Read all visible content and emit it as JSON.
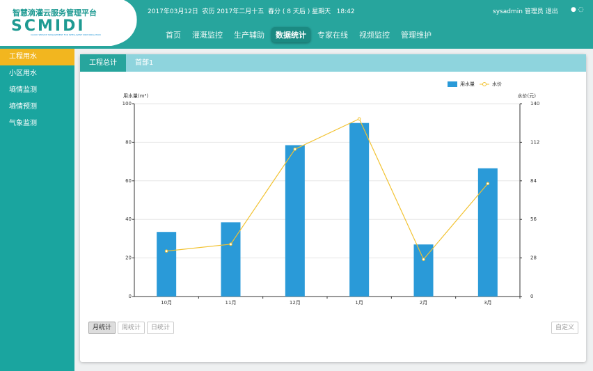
{
  "header": {
    "logo_title": "智慧滴灌云服务管理平台",
    "logo_text": "SCMIDI",
    "logo_subtitle": "CLOUD SERVICE MANAGEMENT FOR INTELLIGENT DRIP IRRIGATION",
    "datetime": "2017年03月12日  农历 2017年二月十五  春分 ( 8 天后 ) 星期天   18:42",
    "user": "sysadmin 管理员",
    "logout": "退出"
  },
  "nav": [
    {
      "label": "首页",
      "active": false
    },
    {
      "label": "灌溉监控",
      "active": false
    },
    {
      "label": "生产辅助",
      "active": false
    },
    {
      "label": "数据统计",
      "active": true
    },
    {
      "label": "专家在线",
      "active": false
    },
    {
      "label": "视频监控",
      "active": false
    },
    {
      "label": "管理维护",
      "active": false
    }
  ],
  "sidebar": [
    {
      "label": "工程用水",
      "active": true
    },
    {
      "label": "小区用水",
      "active": false
    },
    {
      "label": "墒情监测",
      "active": false
    },
    {
      "label": "墒情预测",
      "active": false
    },
    {
      "label": "气象监测",
      "active": false
    }
  ],
  "tabs": [
    {
      "label": "工程总计",
      "active": true
    },
    {
      "label": "首部1",
      "active": false
    }
  ],
  "chart_data": {
    "type": "bar-line",
    "y_label": "用水量(m³)",
    "y2_label": "水价(元)",
    "categories": [
      "10月",
      "11月",
      "12月",
      "1月",
      "2月",
      "3月"
    ],
    "series": [
      {
        "name": "用水量",
        "type": "bar",
        "color": "#2a9ad8",
        "values": [
          33.5,
          38.5,
          78.5,
          90,
          27,
          66.5
        ]
      },
      {
        "name": "水价",
        "type": "line",
        "axis": "y2",
        "color": "#f2c230",
        "values": [
          33,
          38,
          107,
          129,
          27,
          82
        ]
      }
    ],
    "ylim": [
      0,
      100
    ],
    "yticks": [
      0,
      20,
      40,
      60,
      80,
      100
    ],
    "y2lim": [
      0,
      140
    ],
    "y2ticks": [
      0,
      28,
      56,
      84,
      112,
      140
    ],
    "grid": true,
    "legend": "top-right"
  },
  "buttons": [
    {
      "label": "月统计",
      "active": true
    },
    {
      "label": "周统计",
      "active": false
    },
    {
      "label": "日统计",
      "active": false
    }
  ],
  "custom_button": "自定义"
}
